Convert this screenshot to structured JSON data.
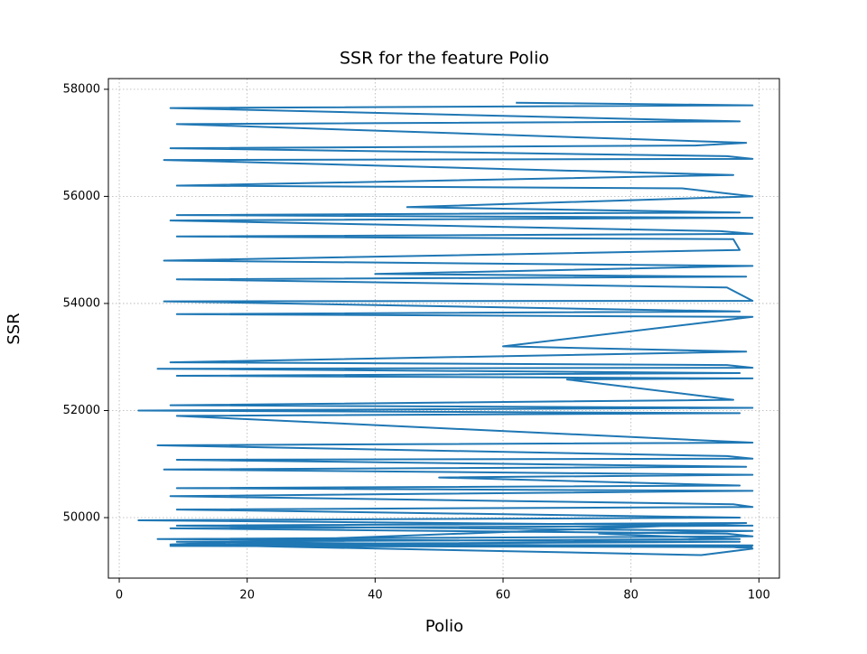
{
  "chart_data": {
    "type": "line",
    "title": "SSR for the feature Polio",
    "x_label": "Polio",
    "y_label": "SSR",
    "x": [
      62,
      99,
      8,
      97,
      9,
      98,
      90,
      8,
      95,
      99,
      7,
      96,
      9,
      88,
      99,
      45,
      97,
      9,
      99,
      8,
      94,
      99,
      9,
      96,
      97,
      7,
      99,
      40,
      98,
      9,
      95,
      99,
      7,
      97,
      9,
      99,
      60,
      98,
      8,
      95,
      99,
      6,
      97,
      9,
      99,
      70,
      96,
      8,
      99,
      3,
      97,
      9,
      99,
      6,
      95,
      99,
      9,
      98,
      7,
      99,
      50,
      97,
      9,
      99,
      8,
      96,
      99,
      9,
      97,
      3,
      99,
      8,
      95,
      99,
      6,
      97,
      9,
      99,
      8,
      96,
      99,
      91,
      8,
      98,
      9,
      99,
      75,
      97,
      9,
      99
    ],
    "values": [
      57750,
      57700,
      57650,
      57400,
      57350,
      57000,
      56950,
      56900,
      56750,
      56700,
      56680,
      56400,
      56200,
      56150,
      56000,
      55800,
      55700,
      55650,
      55600,
      55550,
      55350,
      55300,
      55250,
      55200,
      55000,
      54800,
      54700,
      54550,
      54500,
      54450,
      54300,
      54050,
      54040,
      53850,
      53800,
      53750,
      53200,
      53100,
      52900,
      52850,
      52800,
      52780,
      52700,
      52650,
      52600,
      52580,
      52200,
      52100,
      52050,
      52000,
      51950,
      51900,
      51400,
      51350,
      51150,
      51100,
      51080,
      50950,
      50900,
      50800,
      50750,
      50600,
      50550,
      50500,
      50400,
      50250,
      50200,
      50150,
      50000,
      49950,
      49850,
      49800,
      49700,
      49650,
      49600,
      49550,
      49500,
      49480,
      49470,
      49450,
      49420,
      49300,
      49500,
      49900,
      49850,
      49750,
      49700,
      49600,
      49550,
      49450
    ],
    "color": "#1f77b4",
    "xlim": [
      -1.7,
      103.2
    ],
    "ylim": [
      48870,
      58200
    ],
    "xticks": [
      0,
      20,
      40,
      60,
      80,
      100
    ],
    "yticks": [
      50000,
      52000,
      54000,
      56000,
      58000
    ],
    "grid": true
  }
}
